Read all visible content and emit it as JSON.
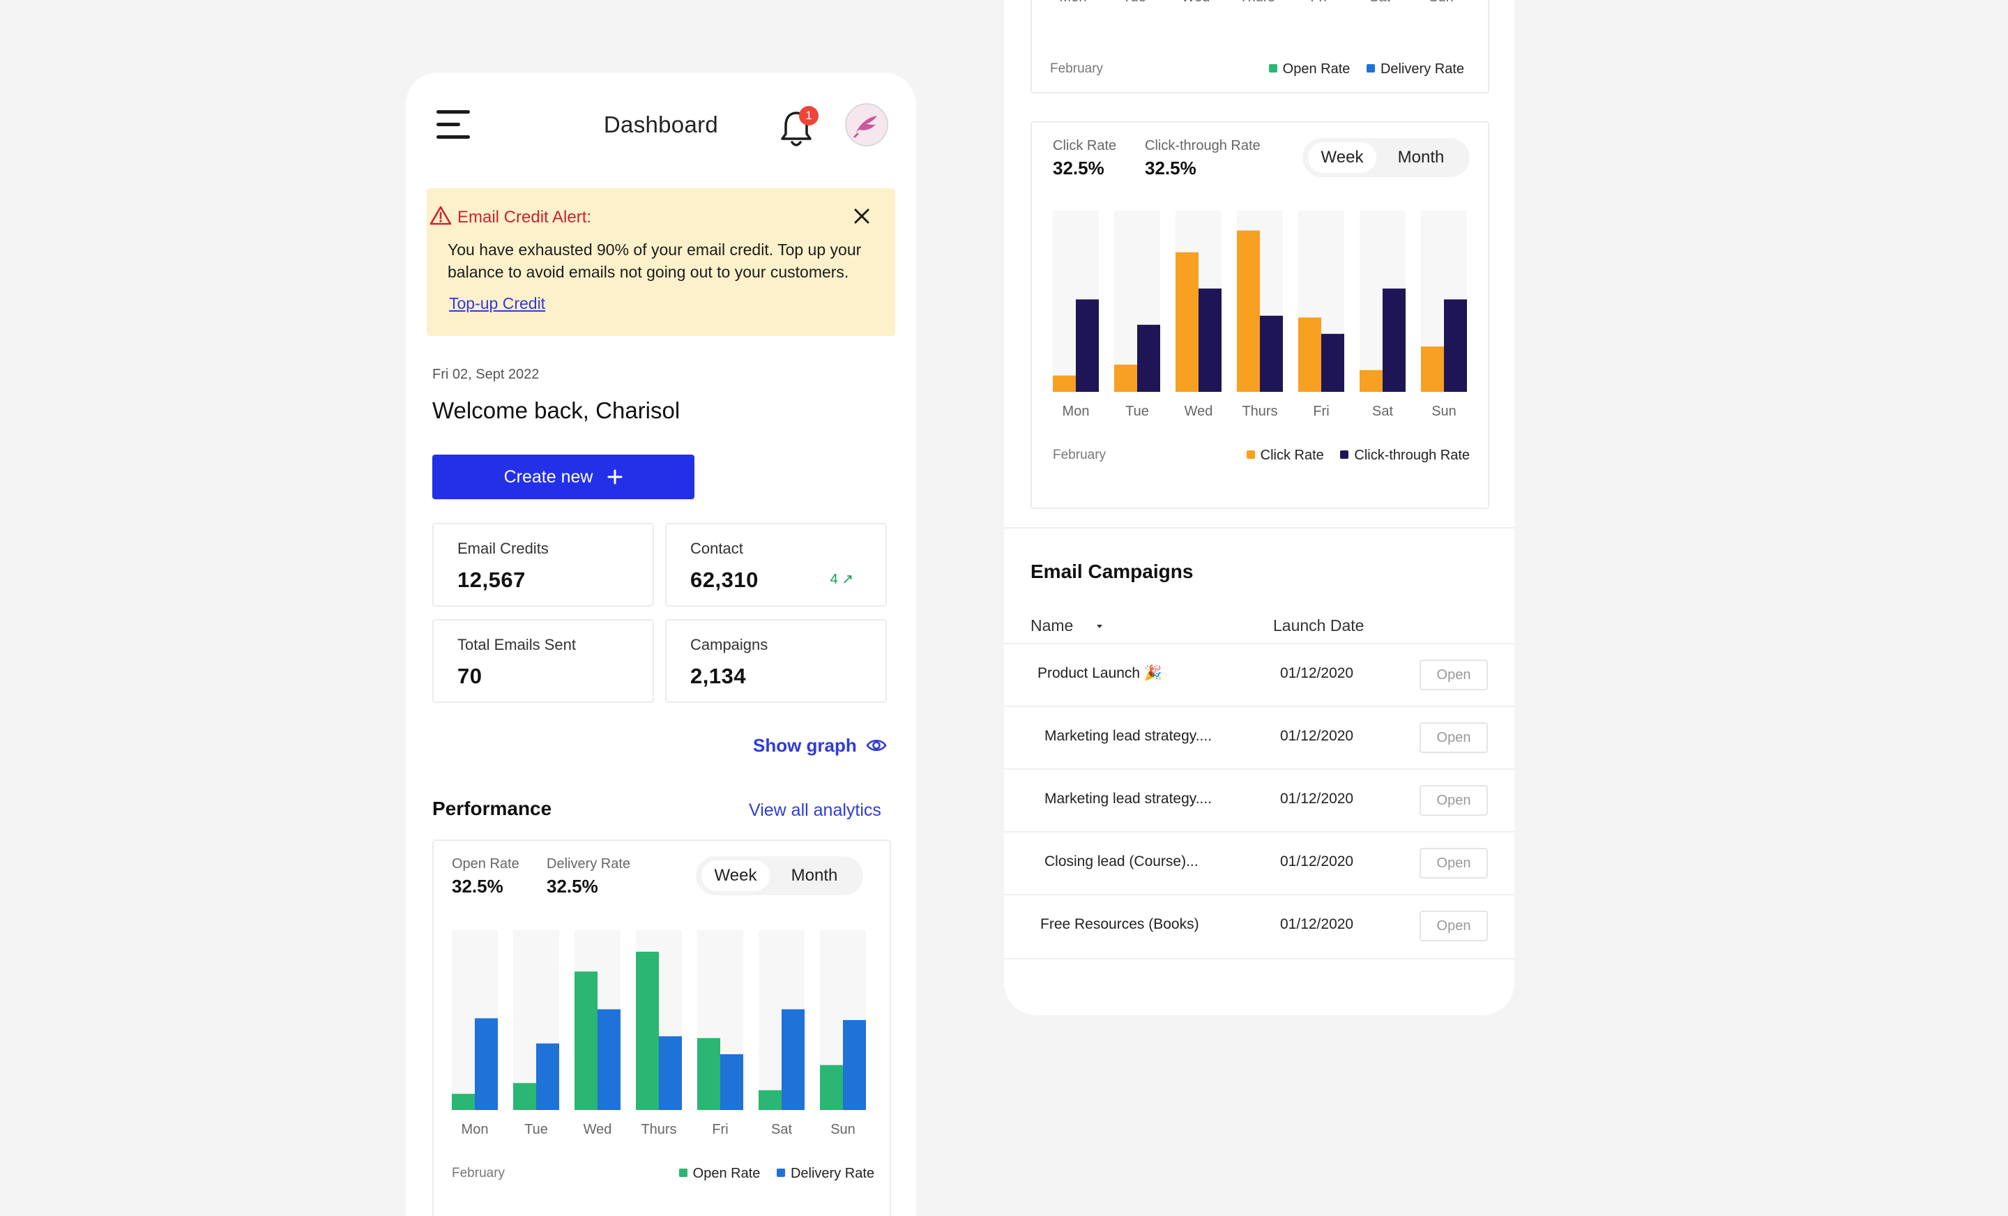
{
  "header": {
    "title": "Dashboard",
    "notification_count": "1"
  },
  "alert": {
    "title": "Email Credit Alert:",
    "body": "You have exhausted 90% of your email credit. Top up your balance to avoid emails not going out to your customers.",
    "link": "Top-up Credit"
  },
  "greeting": {
    "date": "Fri 02, Sept 2022",
    "welcome": "Welcome back, Charisol"
  },
  "create_button": "Create new",
  "stats": [
    {
      "label": "Email Credits",
      "value": "12,567"
    },
    {
      "label": "Contact",
      "value": "62,310",
      "trend": "4 ↗"
    },
    {
      "label": "Total Emails Sent",
      "value": "70"
    },
    {
      "label": "Campaigns",
      "value": "2,134"
    }
  ],
  "show_graph": "Show graph",
  "performance": {
    "title": "Performance",
    "view_all": "View all analytics"
  },
  "toggle": {
    "week": "Week",
    "month": "Month"
  },
  "colors": {
    "green": "#2bb673",
    "blue": "#1f72d8",
    "orange": "#f7a021",
    "navy": "#1e1556",
    "accent": "#2330e8"
  },
  "chart_data": [
    {
      "type": "bar",
      "metrics": [
        {
          "label": "Open Rate",
          "value": "32.5%"
        },
        {
          "label": "Delivery Rate",
          "value": "32.5%"
        }
      ],
      "categories": [
        "Mon",
        "Tue",
        "Wed",
        "Thurs",
        "Fri",
        "Sat",
        "Sun"
      ],
      "series": [
        {
          "name": "Open Rate",
          "values": [
            9,
            15,
            77,
            88,
            40,
            11,
            25
          ]
        },
        {
          "name": "Delivery Rate",
          "values": [
            51,
            37,
            56,
            41,
            31,
            56,
            50
          ]
        }
      ],
      "xlabel": "February",
      "ylim": [
        0,
        100
      ]
    },
    {
      "type": "bar",
      "metrics": [
        {
          "label": "Click Rate",
          "value": "32.5%"
        },
        {
          "label": "Click-through Rate",
          "value": "32.5%"
        }
      ],
      "categories": [
        "Mon",
        "Tue",
        "Wed",
        "Thurs",
        "Fri",
        "Sat",
        "Sun"
      ],
      "series": [
        {
          "name": "Click Rate",
          "values": [
            9,
            15,
            77,
            89,
            41,
            12,
            25
          ]
        },
        {
          "name": "Click-through Rate",
          "values": [
            51,
            37,
            57,
            42,
            32,
            57,
            51
          ]
        }
      ],
      "xlabel": "February",
      "ylim": [
        0,
        100
      ]
    },
    {
      "type": "bar",
      "categories": [
        "Mon",
        "Tue",
        "Wed",
        "Thurs",
        "Fri",
        "Sat",
        "Sun"
      ],
      "series": [
        {
          "name": "Open Rate"
        },
        {
          "name": "Delivery Rate"
        }
      ],
      "xlabel": "February"
    }
  ],
  "campaigns": {
    "title": "Email Campaigns",
    "columns": {
      "name": "Name",
      "launch_date": "Launch Date"
    },
    "rows": [
      {
        "name": "Product Launch 🎉",
        "date": "01/12/2020",
        "action": "Open"
      },
      {
        "name": "Marketing lead strategy....",
        "date": "01/12/2020",
        "action": "Open"
      },
      {
        "name": "Marketing lead strategy....",
        "date": "01/12/2020",
        "action": "Open"
      },
      {
        "name": "Closing lead (Course)...",
        "date": "01/12/2020",
        "action": "Open"
      },
      {
        "name": "Free Resources (Books)",
        "date": "01/12/2020",
        "action": "Open"
      }
    ]
  }
}
